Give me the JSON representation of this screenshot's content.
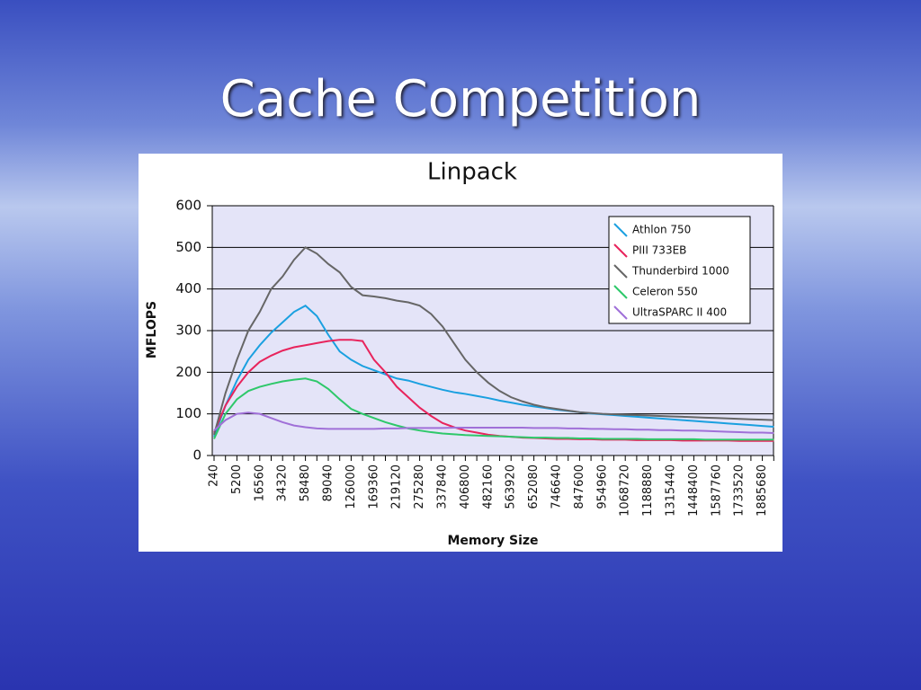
{
  "slide_title": "Cache Competition",
  "chart_data": {
    "type": "line",
    "title": "Linpack",
    "x_label": "Memory Size",
    "y_label": "MFLOPS",
    "categories": [
      "240",
      null,
      "5200",
      null,
      "16560",
      null,
      "34320",
      null,
      "58480",
      null,
      "89040",
      null,
      "126000",
      null,
      "169360",
      null,
      "219120",
      null,
      "275280",
      null,
      "337840",
      null,
      "406800",
      null,
      "482160",
      null,
      "563920",
      null,
      "652080",
      null,
      "746640",
      null,
      "847600",
      null,
      "954960",
      null,
      "1068720",
      null,
      "1188880",
      null,
      "1315440",
      null,
      "1448400",
      null,
      "1587760",
      null,
      "1733520",
      null,
      "1885680",
      null
    ],
    "ylim": [
      0,
      600
    ],
    "yticks": [
      0,
      100,
      200,
      300,
      400,
      500,
      600
    ],
    "grid": true,
    "legend": "upper right",
    "series": [
      {
        "name": "Athlon 750",
        "color": "#1aa0e0",
        "values": [
          45,
          120,
          180,
          230,
          265,
          295,
          320,
          345,
          360,
          335,
          290,
          250,
          230,
          215,
          205,
          195,
          185,
          180,
          172,
          165,
          158,
          152,
          148,
          143,
          138,
          132,
          127,
          122,
          118,
          114,
          110,
          107,
          104,
          101,
          99,
          97,
          95,
          93,
          91,
          89,
          87,
          85,
          83,
          81,
          79,
          77,
          75,
          73,
          71,
          69
        ]
      },
      {
        "name": "PIII 733EB",
        "color": "#e8245c",
        "values": [
          55,
          120,
          165,
          200,
          225,
          240,
          252,
          260,
          265,
          270,
          275,
          278,
          278,
          275,
          230,
          200,
          165,
          140,
          115,
          95,
          78,
          68,
          60,
          55,
          50,
          47,
          45,
          43,
          42,
          41,
          40,
          40,
          39,
          39,
          38,
          38,
          38,
          37,
          37,
          37,
          37,
          36,
          36,
          36,
          36,
          36,
          35,
          35,
          35,
          35
        ]
      },
      {
        "name": "Thunderbird 1000",
        "color": "#666666",
        "values": [
          50,
          150,
          230,
          300,
          345,
          400,
          430,
          470,
          500,
          485,
          460,
          440,
          405,
          385,
          382,
          378,
          372,
          368,
          360,
          340,
          310,
          270,
          230,
          200,
          175,
          155,
          140,
          130,
          122,
          116,
          112,
          108,
          104,
          102,
          100,
          99,
          98,
          97,
          96,
          95,
          94,
          93,
          92,
          91,
          90,
          89,
          88,
          87,
          86,
          85
        ]
      },
      {
        "name": "Celeron 550",
        "color": "#2ec86a",
        "values": [
          40,
          100,
          135,
          155,
          165,
          172,
          178,
          182,
          185,
          178,
          160,
          135,
          112,
          100,
          90,
          80,
          72,
          65,
          60,
          56,
          53,
          51,
          49,
          48,
          47,
          46,
          45,
          44,
          43,
          43,
          42,
          42,
          41,
          41,
          40,
          40,
          40,
          40,
          39,
          39,
          39,
          39,
          39,
          38,
          38,
          38,
          38,
          38,
          38,
          38
        ]
      },
      {
        "name": "UltraSPARC II 400",
        "color": "#a070d8",
        "values": [
          60,
          85,
          100,
          103,
          100,
          90,
          80,
          72,
          68,
          65,
          64,
          64,
          64,
          64,
          64,
          65,
          65,
          66,
          66,
          66,
          66,
          67,
          67,
          67,
          67,
          67,
          67,
          67,
          66,
          66,
          66,
          65,
          65,
          64,
          64,
          63,
          63,
          62,
          62,
          61,
          61,
          60,
          60,
          59,
          58,
          57,
          56,
          55,
          55,
          54
        ]
      }
    ]
  }
}
